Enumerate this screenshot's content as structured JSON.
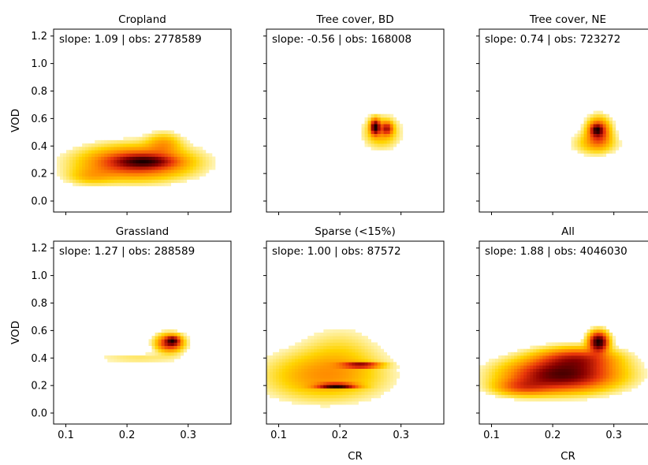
{
  "figure": {
    "rows": 2,
    "cols": 3,
    "sharex": true,
    "sharey": true,
    "colormap": "hot_r",
    "colors": [
      "#ffffff",
      "#fff3b0",
      "#ffd400",
      "#ff8c00",
      "#e8350a",
      "#8b0000",
      "#1a0000"
    ]
  },
  "chart_data": [
    {
      "type": "heatmap",
      "title": "Cropland",
      "annotation": "slope: 1.09 | obs: 2778589",
      "xlabel": "",
      "ylabel": "VOD",
      "xlim": [
        0.08,
        0.37
      ],
      "ylim": [
        -0.08,
        1.25
      ],
      "xticks": [
        "0.1",
        "0.2",
        "0.3"
      ],
      "yticks": [
        "0.0",
        "0.2",
        "0.4",
        "0.6",
        "0.8",
        "1.0",
        "1.2"
      ],
      "blobs": [
        {
          "x": 0.215,
          "y": 0.28,
          "sx": 0.055,
          "sy": 0.075,
          "rot": 0.45,
          "w": 1.0
        },
        {
          "x": 0.23,
          "y": 0.29,
          "sx": 0.03,
          "sy": 0.03,
          "rot": 0.45,
          "w": 0.8
        },
        {
          "x": 0.26,
          "y": 0.42,
          "sx": 0.018,
          "sy": 0.05,
          "rot": 0.2,
          "w": 0.35
        },
        {
          "x": 0.14,
          "y": 0.18,
          "sx": 0.025,
          "sy": 0.04,
          "rot": 0.3,
          "w": 0.25
        }
      ]
    },
    {
      "type": "heatmap",
      "title": "Tree cover, BD",
      "annotation": "slope: -0.56 | obs: 168008",
      "xlabel": "",
      "ylabel": "",
      "xlim": [
        0.08,
        0.37
      ],
      "ylim": [
        -0.08,
        1.25
      ],
      "xticks": [
        "0.1",
        "0.2",
        "0.3"
      ],
      "yticks": [
        "0.0",
        "0.2",
        "0.4",
        "0.6",
        "0.8",
        "1.0",
        "1.2"
      ],
      "blobs": [
        {
          "x": 0.258,
          "y": 0.54,
          "sx": 0.005,
          "sy": 0.035,
          "rot": 0.0,
          "w": 1.0
        },
        {
          "x": 0.277,
          "y": 0.53,
          "sx": 0.006,
          "sy": 0.03,
          "rot": 0.0,
          "w": 0.55
        },
        {
          "x": 0.268,
          "y": 0.5,
          "sx": 0.018,
          "sy": 0.07,
          "rot": 0.0,
          "w": 0.25
        }
      ]
    },
    {
      "type": "heatmap",
      "title": "Tree cover, NE",
      "annotation": "slope: 0.74 | obs: 723272",
      "xlabel": "",
      "ylabel": "",
      "xlim": [
        0.08,
        0.37
      ],
      "ylim": [
        -0.08,
        1.25
      ],
      "xticks": [
        "0.1",
        "0.2",
        "0.3"
      ],
      "yticks": [
        "0.0",
        "0.2",
        "0.4",
        "0.6",
        "0.8",
        "1.0",
        "1.2"
      ],
      "blobs": [
        {
          "x": 0.275,
          "y": 0.51,
          "sx": 0.012,
          "sy": 0.06,
          "rot": 0.0,
          "w": 1.0
        },
        {
          "x": 0.272,
          "y": 0.52,
          "sx": 0.006,
          "sy": 0.025,
          "rot": 0.0,
          "w": 0.9
        },
        {
          "x": 0.27,
          "y": 0.42,
          "sx": 0.022,
          "sy": 0.05,
          "rot": 0.0,
          "w": 0.35
        }
      ]
    },
    {
      "type": "heatmap",
      "title": "Grassland",
      "annotation": "slope: 1.27 | obs: 288589",
      "xlabel": "",
      "ylabel": "VOD",
      "xlim": [
        0.08,
        0.37
      ],
      "ylim": [
        -0.08,
        1.25
      ],
      "xticks": [
        "0.1",
        "0.2",
        "0.3"
      ],
      "yticks": [
        "0.0",
        "0.2",
        "0.4",
        "0.6",
        "0.8",
        "1.0",
        "1.2"
      ],
      "blobs": [
        {
          "x": 0.27,
          "y": 0.51,
          "sx": 0.014,
          "sy": 0.04,
          "rot": 0.5,
          "w": 1.0
        },
        {
          "x": 0.275,
          "y": 0.53,
          "sx": 0.007,
          "sy": 0.02,
          "rot": 0.5,
          "w": 0.8
        },
        {
          "x": 0.22,
          "y": 0.4,
          "sx": 0.05,
          "sy": 0.025,
          "rot": 0.2,
          "w": 0.12
        }
      ]
    },
    {
      "type": "heatmap",
      "title": "Sparse (<15%)",
      "annotation": "slope: 1.00 | obs: 87572",
      "xlabel": "CR",
      "ylabel": "",
      "xlim": [
        0.08,
        0.37
      ],
      "ylim": [
        -0.08,
        1.25
      ],
      "xticks": [
        "0.1",
        "0.2",
        "0.3"
      ],
      "yticks": [
        "0.0",
        "0.2",
        "0.4",
        "0.6",
        "0.8",
        "1.0",
        "1.2"
      ],
      "blobs": [
        {
          "x": 0.195,
          "y": 0.2,
          "sx": 0.02,
          "sy": 0.01,
          "rot": 0.0,
          "w": 1.0
        },
        {
          "x": 0.235,
          "y": 0.35,
          "sx": 0.02,
          "sy": 0.012,
          "rot": 0.0,
          "w": 0.7
        },
        {
          "x": 0.175,
          "y": 0.27,
          "sx": 0.06,
          "sy": 0.11,
          "rot": 0.0,
          "w": 0.25
        },
        {
          "x": 0.2,
          "y": 0.45,
          "sx": 0.04,
          "sy": 0.12,
          "rot": 0.0,
          "w": 0.08
        }
      ]
    },
    {
      "type": "heatmap",
      "title": "All",
      "annotation": "slope: 1.88 | obs: 4046030",
      "xlabel": "CR",
      "ylabel": "",
      "xlim": [
        0.08,
        0.37
      ],
      "ylim": [
        -0.08,
        1.25
      ],
      "xticks": [
        "0.1",
        "0.2",
        "0.3"
      ],
      "yticks": [
        "0.0",
        "0.2",
        "0.4",
        "0.6",
        "0.8",
        "1.0",
        "1.2"
      ],
      "blobs": [
        {
          "x": 0.215,
          "y": 0.28,
          "sx": 0.055,
          "sy": 0.075,
          "rot": 0.45,
          "w": 0.85
        },
        {
          "x": 0.275,
          "y": 0.52,
          "sx": 0.01,
          "sy": 0.045,
          "rot": 0.0,
          "w": 1.0
        },
        {
          "x": 0.24,
          "y": 0.4,
          "sx": 0.04,
          "sy": 0.05,
          "rot": 0.5,
          "w": 0.45
        },
        {
          "x": 0.15,
          "y": 0.19,
          "sx": 0.03,
          "sy": 0.04,
          "rot": 0.3,
          "w": 0.3
        }
      ]
    }
  ]
}
